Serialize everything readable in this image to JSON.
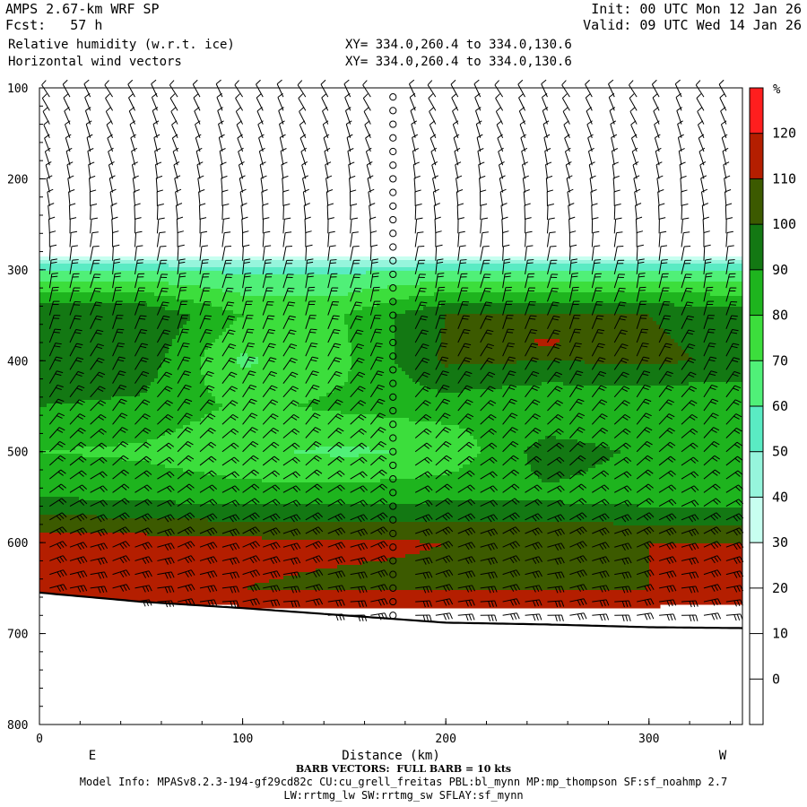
{
  "header": {
    "model": "AMPS 2.67-km WRF SP",
    "fcst": "Fcst:   57 h",
    "init": "Init: 00 UTC Mon 12 Jan 26",
    "valid": "Valid: 09 UTC Wed 14 Jan 26",
    "field1": "Relative humidity (w.r.t. ice)",
    "field2": "Horizontal wind vectors",
    "xy1": "XY= 334.0,260.4 to 334.0,130.6",
    "xy2": "XY= 334.0,260.4 to 334.0,130.6"
  },
  "footer": {
    "barb_note": "BARB VECTORS:  FULL BARB = 10 kts",
    "model_info": "Model Info: MPASv8.2.3-194-gf29cd82c CU:cu_grell_freitas PBL:bl_mynn MP:mp_thompson SF:sf_noahmp 2.7",
    "model_info2": "LW:rrtmg_lw SW:rrtmg_sw SFLAY:sf_mynn"
  },
  "colors": {
    "bands": [
      "#ffffff",
      "#ffffff",
      "#ffffff",
      "#ffffff",
      "#c8fff0",
      "#96f5dc",
      "#5aebc3",
      "#50f078",
      "#3cde3c",
      "#1eb41e",
      "#137813",
      "#3c5a00",
      "#b41e00",
      "#ff1e1e"
    ],
    "terrain": "#ffffff"
  },
  "chart_data": {
    "type": "contour cross-section",
    "title": "Relative humidity (w.r.t. ice)",
    "subtitle": "Horizontal wind vectors",
    "xlabel": "Distance (km)",
    "ylabel": "",
    "x_ticks": [
      0,
      100,
      200,
      300
    ],
    "xlim": [
      0,
      346
    ],
    "x_end_labels": [
      "E",
      "W"
    ],
    "y_ticks": [
      100,
      200,
      300,
      400,
      500,
      600,
      700,
      800
    ],
    "ylim": [
      800,
      100
    ],
    "colorbar": {
      "unit": "%",
      "levels": [
        0,
        10,
        20,
        30,
        40,
        50,
        60,
        70,
        80,
        90,
        100,
        110,
        120
      ]
    },
    "rh_profile_x": [
      0,
      50,
      100,
      150,
      200,
      250,
      300,
      346
    ],
    "rh_profiles": [
      {
        "p": [
          100,
          280,
          300,
          350,
          400,
          450,
          500,
          550,
          600,
          650,
          680
        ],
        "rh": [
          0,
          20,
          60,
          100,
          98,
          90,
          80,
          90,
          115,
          115,
          125
        ]
      },
      {
        "p": [
          100,
          280,
          300,
          350,
          400,
          450,
          500,
          550,
          600,
          650,
          680
        ],
        "rh": [
          0,
          20,
          60,
          100,
          96,
          88,
          78,
          88,
          115,
          113,
          125
        ]
      },
      {
        "p": [
          100,
          280,
          300,
          350,
          400,
          450,
          500,
          550,
          600,
          650,
          680
        ],
        "rh": [
          0,
          20,
          58,
          80,
          68,
          78,
          72,
          85,
          113,
          110,
          125
        ]
      },
      {
        "p": [
          100,
          280,
          300,
          350,
          400,
          450,
          500,
          550,
          600,
          650,
          680
        ],
        "rh": [
          0,
          20,
          58,
          80,
          78,
          82,
          68,
          85,
          112,
          108,
          125
        ]
      },
      {
        "p": [
          100,
          280,
          300,
          350,
          400,
          450,
          500,
          550,
          600,
          650,
          680
        ],
        "rh": [
          0,
          20,
          60,
          100,
          102,
          85,
          72,
          88,
          110,
          108,
          125
        ]
      },
      {
        "p": [
          100,
          280,
          300,
          350,
          380,
          400,
          450,
          500,
          550,
          600,
          650,
          680
        ],
        "rh": [
          0,
          20,
          60,
          100,
          112,
          100,
          80,
          95,
          88,
          110,
          108,
          125
        ]
      },
      {
        "p": [
          100,
          280,
          300,
          350,
          400,
          450,
          500,
          550,
          600,
          650,
          680
        ],
        "rh": [
          0,
          20,
          60,
          100,
          102,
          80,
          88,
          85,
          110,
          110,
          125
        ]
      },
      {
        "p": [
          100,
          280,
          300,
          350,
          400,
          450,
          500,
          550,
          600,
          650,
          680
        ],
        "rh": [
          0,
          20,
          60,
          96,
          98,
          80,
          85,
          85,
          110,
          112,
          125
        ]
      }
    ],
    "terrain": {
      "x": [
        0,
        50,
        100,
        150,
        200,
        250,
        300,
        346
      ],
      "p": [
        655,
        665,
        672,
        680,
        688,
        690,
        693,
        694
      ]
    },
    "wind_barbs": {
      "x_columns": [
        5,
        15,
        25,
        36,
        47,
        58,
        68,
        79,
        90,
        100,
        110,
        120,
        131,
        142,
        153,
        163,
        174,
        185,
        195,
        206,
        217,
        228,
        239,
        250,
        261,
        272,
        283,
        294,
        305,
        316,
        327,
        338
      ],
      "levels": [
        110,
        125,
        140,
        155,
        170,
        185,
        200,
        215,
        230,
        245,
        260,
        275,
        290,
        305,
        320,
        335,
        350,
        365,
        380,
        395,
        410,
        425,
        440,
        455,
        470,
        485,
        500,
        515,
        530,
        545,
        560,
        575,
        590,
        605,
        620,
        635,
        650,
        665,
        680
      ],
      "calm_column_x": 174,
      "note": "full barb = 10 kts"
    }
  }
}
